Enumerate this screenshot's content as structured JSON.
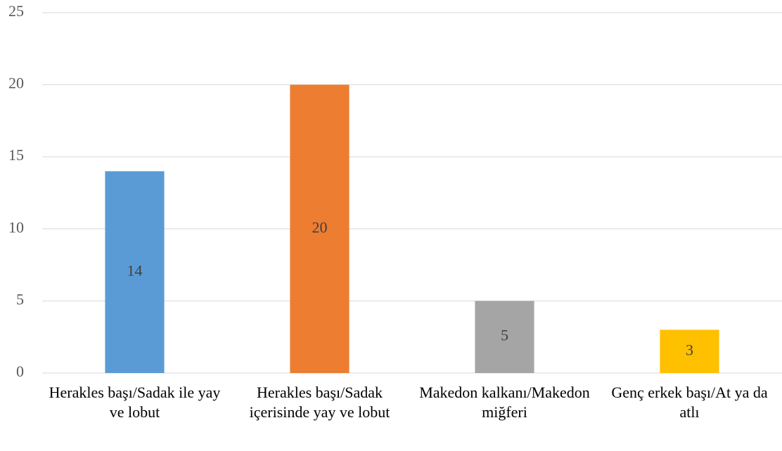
{
  "chart_data": {
    "type": "bar",
    "categories": [
      "Herakles başı/Sadak ile yay ve lobut",
      "Herakles başı/Sadak içerisinde yay ve lobut",
      "Makedon kalkanı/Makedon miğferi",
      "Genç erkek başı/At ya da atlı"
    ],
    "values": [
      14,
      20,
      5,
      3
    ],
    "colors": [
      "#5b9bd5",
      "#ed7d31",
      "#a5a5a5",
      "#ffc000"
    ],
    "ylim": [
      0,
      25
    ],
    "yticks": [
      0,
      5,
      10,
      15,
      20,
      25
    ],
    "grid": true,
    "data_labels": true
  }
}
